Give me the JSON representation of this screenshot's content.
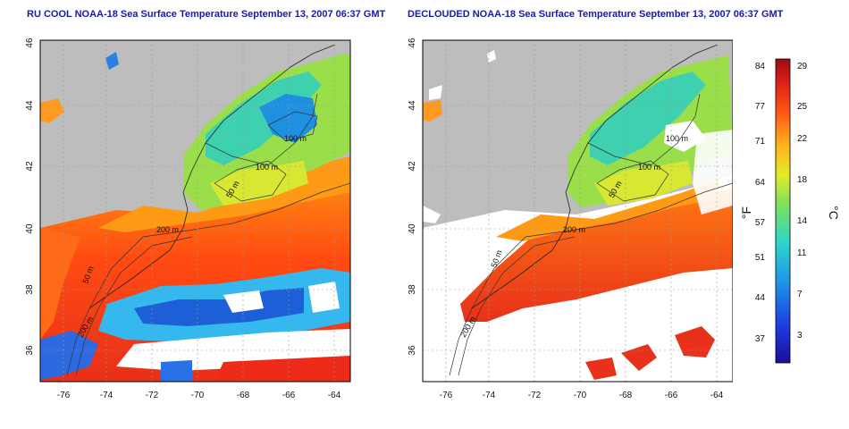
{
  "titles": {
    "left": "RU COOL NOAA-18 Sea Surface Temperature September 13, 2007 06:37 GMT",
    "right": "DECLOUDED NOAA-18 Sea Surface Temperature September 13, 2007 06:37 GMT"
  },
  "map_axes": {
    "lon_ticks": [
      "-76",
      "-74",
      "-72",
      "-70",
      "-68",
      "-66",
      "-64"
    ],
    "lat_ticks": [
      "36",
      "38",
      "40",
      "42",
      "44",
      "46"
    ]
  },
  "contour_labels": {
    "left": [
      "100 m",
      "100 m",
      "50 m",
      "200 m",
      "50 m",
      "200 m"
    ],
    "right": [
      "100 m",
      "100 m",
      "50 m",
      "200 m",
      "50 m",
      "200 m"
    ]
  },
  "colorbar": {
    "f_label": "°F",
    "c_label": "°C",
    "f_ticks": [
      "84",
      "77",
      "71",
      "64",
      "57",
      "51",
      "44",
      "37"
    ],
    "c_ticks": [
      "29",
      "25",
      "22",
      "18",
      "14",
      "11",
      "7",
      "3"
    ]
  },
  "colors": {
    "land": "#bdbdbd",
    "title": "#1a1aa6",
    "grid": "#9a9a9a"
  }
}
